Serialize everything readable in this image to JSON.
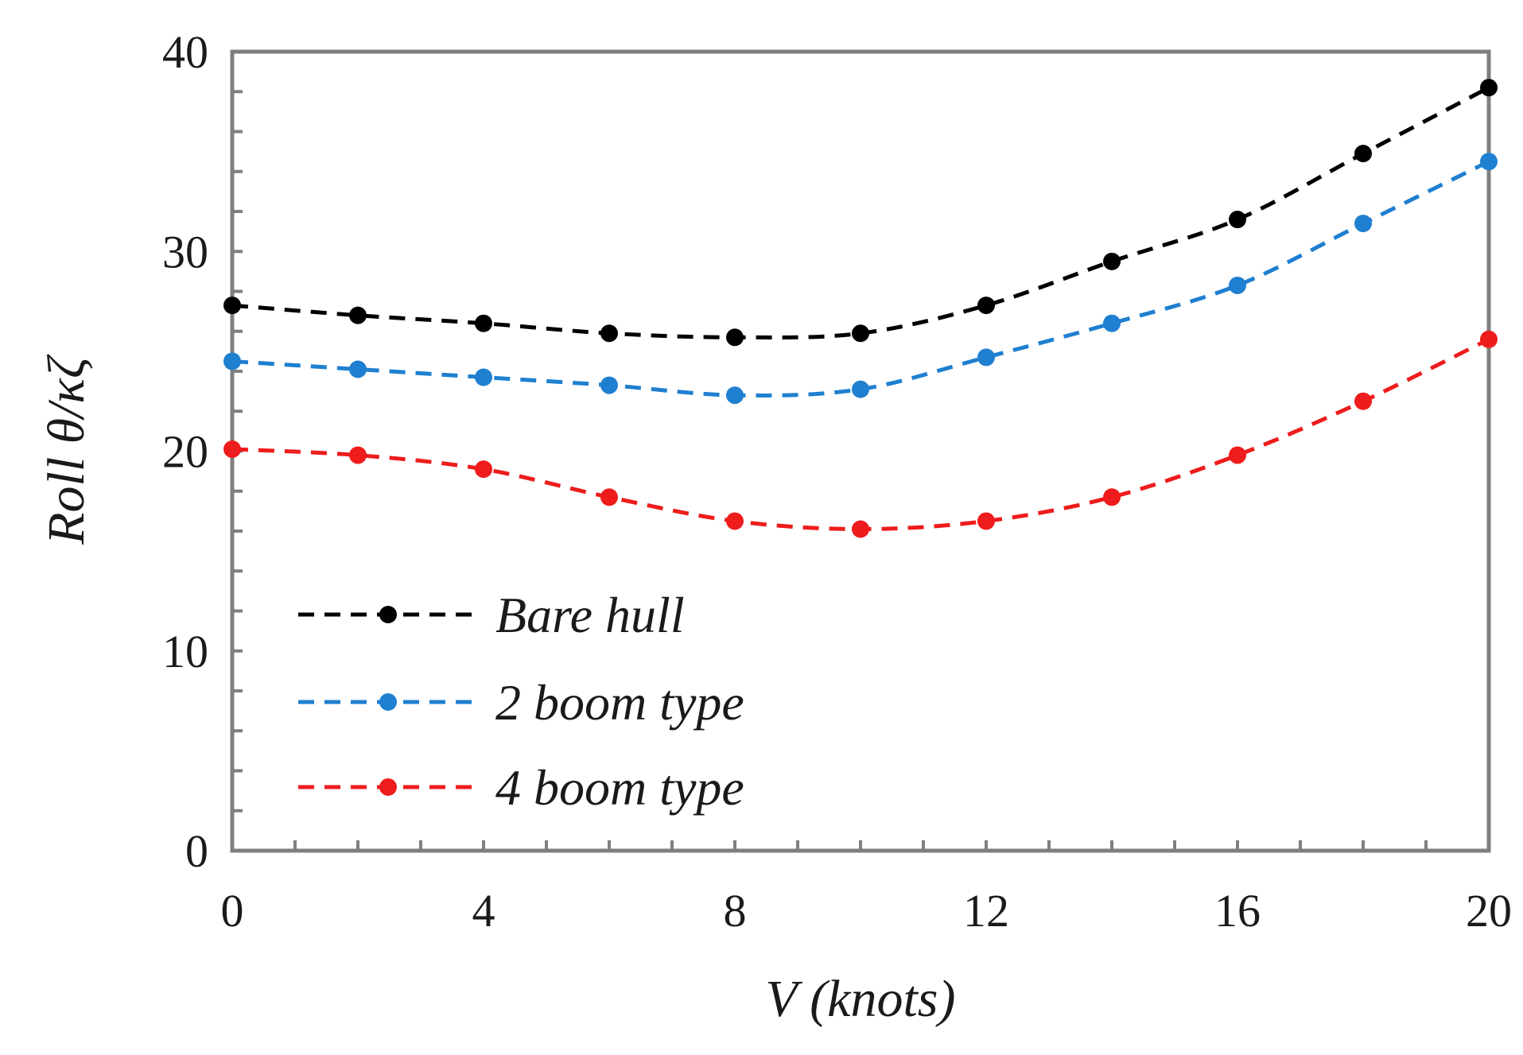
{
  "chart_data": {
    "type": "line",
    "title": "",
    "xlabel": "V (knots)",
    "ylabel": "Roll θ/κζ",
    "xlim": [
      0,
      20
    ],
    "ylim": [
      0,
      40
    ],
    "x_ticks": [
      0,
      4,
      8,
      12,
      16,
      20
    ],
    "x_tick_labels": [
      "0",
      "4",
      "8",
      "12",
      "16",
      "20"
    ],
    "y_ticks": [
      0,
      10,
      20,
      30,
      40
    ],
    "y_tick_labels": [
      "0",
      "10",
      "20",
      "30",
      "40"
    ],
    "x_minor_step": 1,
    "y_minor_step": 2,
    "grid": false,
    "legend_position": "lower-left",
    "x": [
      0,
      2,
      4,
      6,
      8,
      10,
      12,
      14,
      16,
      18,
      20
    ],
    "series": [
      {
        "name": "Bare hull",
        "color": "#000000",
        "values": [
          27.3,
          26.8,
          26.4,
          25.9,
          25.7,
          25.9,
          27.3,
          29.5,
          31.6,
          34.9,
          38.2
        ]
      },
      {
        "name": "2 boom type",
        "color": "#1f7fd0",
        "values": [
          24.5,
          24.1,
          23.7,
          23.3,
          22.8,
          23.1,
          24.7,
          26.4,
          28.3,
          31.4,
          34.5
        ]
      },
      {
        "name": "4 boom type",
        "color": "#ee1c1c",
        "values": [
          20.1,
          19.8,
          19.1,
          17.7,
          16.5,
          16.1,
          16.5,
          17.7,
          19.8,
          22.5,
          25.6
        ]
      }
    ]
  }
}
